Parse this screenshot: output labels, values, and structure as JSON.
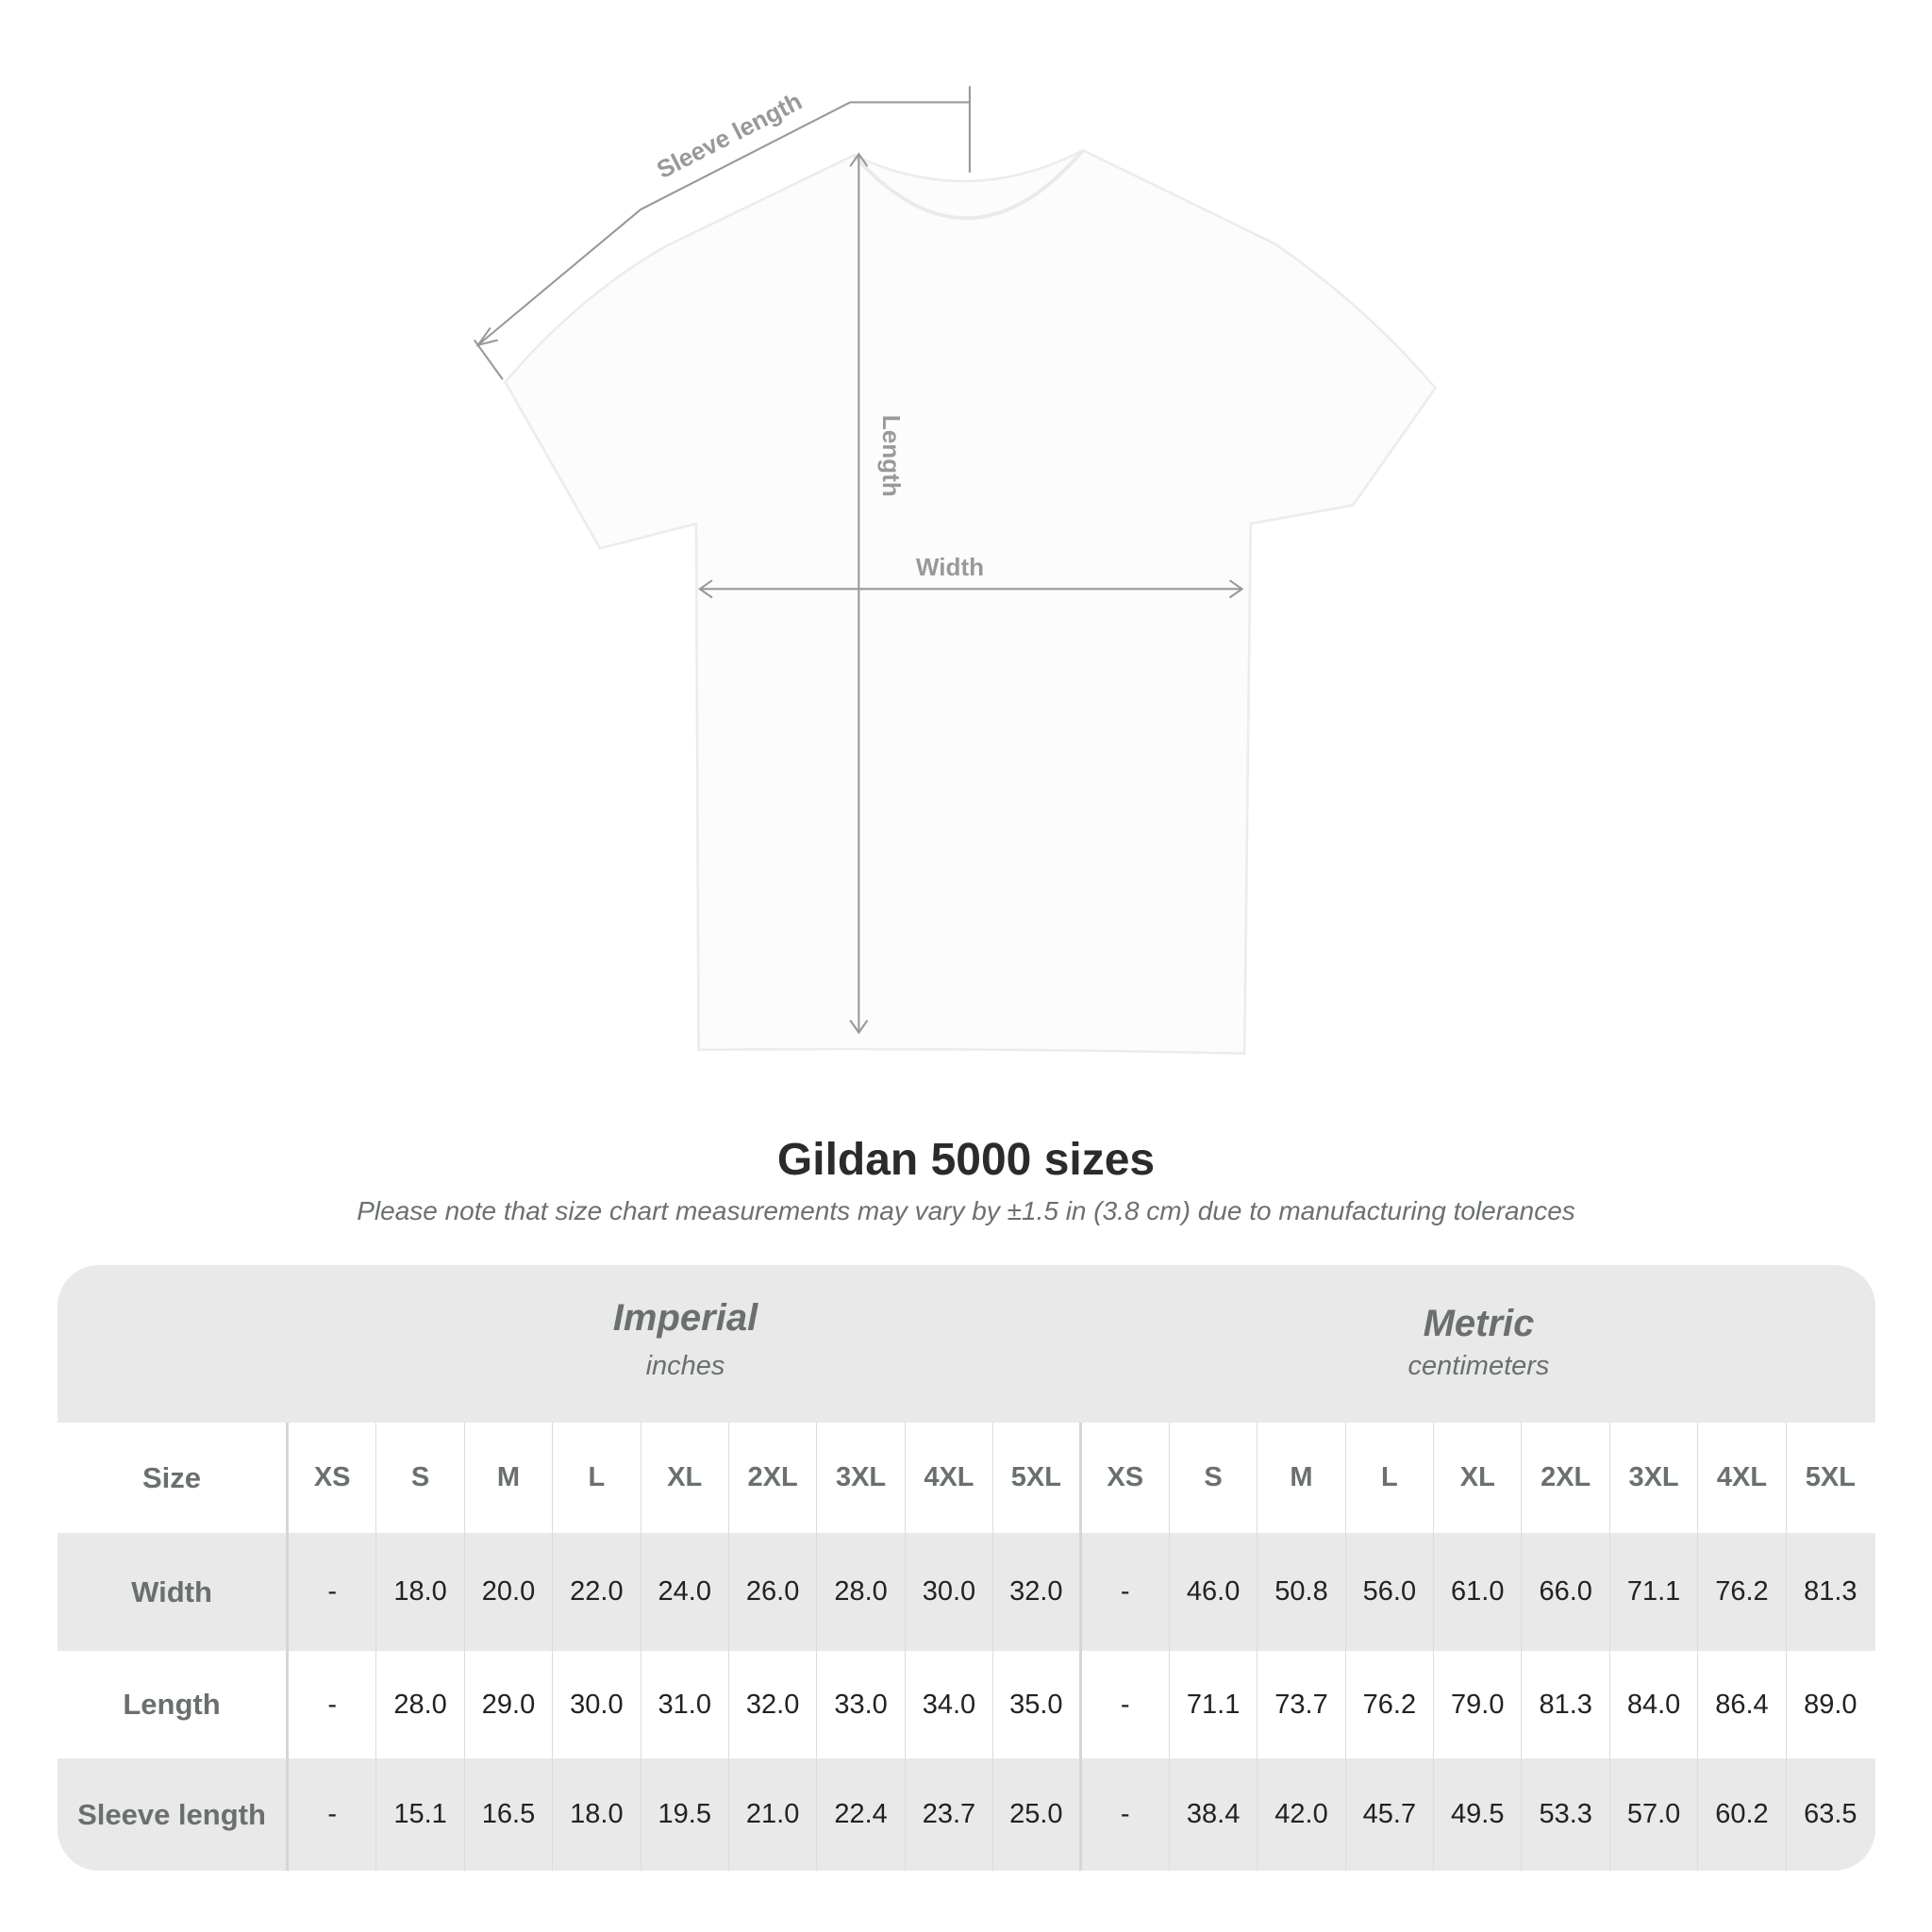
{
  "diagram": {
    "sleeve_label": "Sleeve length",
    "length_label": "Length",
    "width_label": "Width"
  },
  "title": "Gildan 5000 sizes",
  "subtitle": "Please note that size chart measurements may vary by ±1.5 in (3.8 cm) due to manufacturing tolerances",
  "table": {
    "imperial": {
      "label": "Imperial",
      "unit": "inches"
    },
    "metric": {
      "label": "Metric",
      "unit": "centimeters"
    },
    "size_label": "Size",
    "sizes": [
      "XS",
      "S",
      "M",
      "L",
      "XL",
      "2XL",
      "3XL",
      "4XL",
      "5XL"
    ],
    "rows": [
      {
        "label": "Width",
        "imperial": [
          "-",
          "18.0",
          "20.0",
          "22.0",
          "24.0",
          "26.0",
          "28.0",
          "30.0",
          "32.0"
        ],
        "metric": [
          "-",
          "46.0",
          "50.8",
          "56.0",
          "61.0",
          "66.0",
          "71.1",
          "76.2",
          "81.3"
        ]
      },
      {
        "label": "Length",
        "imperial": [
          "-",
          "28.0",
          "29.0",
          "30.0",
          "31.0",
          "32.0",
          "33.0",
          "34.0",
          "35.0"
        ],
        "metric": [
          "-",
          "71.1",
          "73.7",
          "76.2",
          "79.0",
          "81.3",
          "84.0",
          "86.4",
          "89.0"
        ]
      },
      {
        "label": "Sleeve length",
        "imperial": [
          "-",
          "15.1",
          "16.5",
          "18.0",
          "19.5",
          "21.0",
          "22.4",
          "23.7",
          "25.0"
        ],
        "metric": [
          "-",
          "38.4",
          "42.0",
          "45.7",
          "49.5",
          "53.3",
          "57.0",
          "60.2",
          "63.5"
        ]
      }
    ]
  }
}
